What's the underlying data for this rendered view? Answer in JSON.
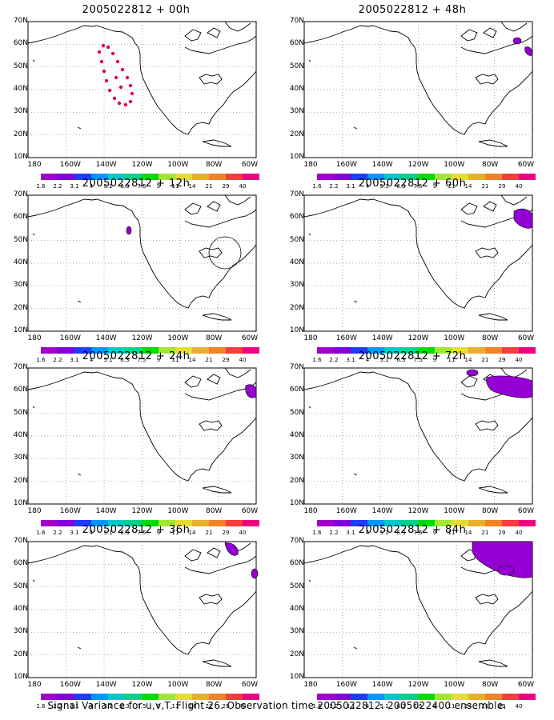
{
  "panels": [
    {
      "title": "2005022812 + 00h",
      "blobs": [
        "dots"
      ]
    },
    {
      "title": "2005022812 + 48h",
      "blobs": [
        "p48"
      ]
    },
    {
      "title": "2005022812 + 12h",
      "blobs": [
        "p12"
      ]
    },
    {
      "title": "2005022812 + 60h",
      "blobs": [
        "p60"
      ]
    },
    {
      "title": "2005022812 + 24h",
      "blobs": [
        "p24"
      ]
    },
    {
      "title": "2005022812 + 72h",
      "blobs": [
        "p72"
      ]
    },
    {
      "title": "2005022812 + 36h",
      "blobs": [
        "p36"
      ]
    },
    {
      "title": "2005022812 + 84h",
      "blobs": [
        "p84"
      ]
    }
  ],
  "lat_labels": [
    "70N",
    "60N",
    "50N",
    "40N",
    "30N",
    "20N",
    "10N"
  ],
  "lon_labels": [
    "180",
    "160W",
    "140W",
    "120W",
    "100W",
    "80W",
    "60W"
  ],
  "colorbar": {
    "labels": [
      "1.6",
      "2.2",
      "3.1",
      "4",
      "5.1",
      "6.3",
      "7.5",
      "9",
      "11",
      "14",
      "21",
      "29",
      "40"
    ],
    "colors": [
      "#a000c8",
      "#8200dc",
      "#1e3cff",
      "#0096ff",
      "#00c8c8",
      "#00d28c",
      "#00dc00",
      "#a0e632",
      "#e6dc32",
      "#e6af2d",
      "#f08228",
      "#fa3c3c",
      "#f00082"
    ]
  },
  "blob_color": "#9400d3",
  "dot_color": "#e6004c",
  "footer": "Signal Variance for u,v,T. Flight 26. Observation time 2005022812. 2005022400 ensemble."
}
